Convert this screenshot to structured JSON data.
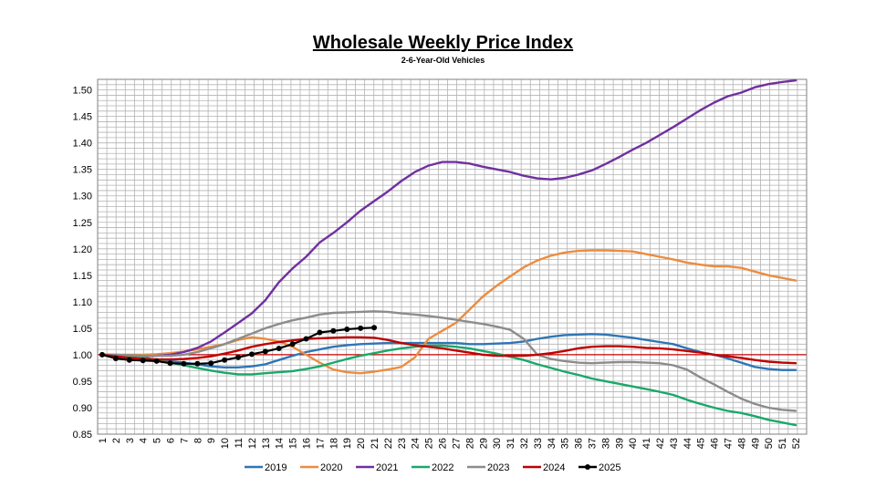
{
  "chart_data": {
    "type": "line",
    "title": "Wholesale Weekly Price Index",
    "subtitle": "2-6-Year-Old Vehicles",
    "xlabel": "",
    "ylabel": "",
    "ylim": [
      0.85,
      1.52
    ],
    "xlim": [
      1,
      52
    ],
    "grid": true,
    "legend_position": "bottom",
    "reference_line": {
      "y": 1.0,
      "color": "#c00000"
    },
    "x_ticks": [
      1,
      2,
      3,
      4,
      5,
      6,
      7,
      8,
      9,
      10,
      11,
      12,
      13,
      14,
      15,
      16,
      17,
      18,
      19,
      20,
      21,
      22,
      23,
      24,
      25,
      26,
      27,
      28,
      29,
      30,
      31,
      32,
      33,
      34,
      35,
      36,
      37,
      38,
      39,
      40,
      41,
      42,
      43,
      44,
      45,
      46,
      47,
      48,
      49,
      50,
      51,
      52
    ],
    "y_ticks": [
      "0.85",
      "0.90",
      "0.95",
      "1.00",
      "1.05",
      "1.10",
      "1.15",
      "1.20",
      "1.25",
      "1.30",
      "1.35",
      "1.40",
      "1.45",
      "1.50"
    ],
    "series": [
      {
        "name": "2019",
        "color": "#2f75b5",
        "marker": false,
        "x": [
          1,
          2,
          3,
          4,
          5,
          6,
          7,
          8,
          9,
          10,
          11,
          12,
          13,
          14,
          15,
          16,
          17,
          18,
          19,
          20,
          21,
          22,
          23,
          24,
          25,
          26,
          27,
          28,
          29,
          30,
          31,
          32,
          33,
          34,
          35,
          36,
          37,
          38,
          39,
          40,
          41,
          42,
          43,
          44,
          45,
          46,
          47,
          48,
          49,
          50,
          51,
          52
        ],
        "values": [
          1.0,
          0.998,
          0.995,
          0.993,
          0.99,
          0.988,
          0.985,
          0.982,
          0.978,
          0.976,
          0.976,
          0.978,
          0.982,
          0.99,
          0.998,
          1.005,
          1.01,
          1.015,
          1.018,
          1.02,
          1.021,
          1.022,
          1.022,
          1.022,
          1.022,
          1.022,
          1.022,
          1.02,
          1.02,
          1.021,
          1.022,
          1.025,
          1.03,
          1.034,
          1.037,
          1.038,
          1.039,
          1.038,
          1.035,
          1.032,
          1.028,
          1.024,
          1.02,
          1.012,
          1.005,
          1.0,
          0.993,
          0.985,
          0.977,
          0.973,
          0.971,
          0.971
        ]
      },
      {
        "name": "2020",
        "color": "#ed8c3e",
        "marker": false,
        "x": [
          1,
          2,
          3,
          4,
          5,
          6,
          7,
          8,
          9,
          10,
          11,
          12,
          13,
          14,
          15,
          16,
          17,
          18,
          19,
          20,
          21,
          22,
          23,
          24,
          25,
          26,
          27,
          28,
          29,
          30,
          31,
          32,
          33,
          34,
          35,
          36,
          37,
          38,
          39,
          40,
          41,
          42,
          43,
          44,
          45,
          46,
          47,
          48,
          49,
          50,
          51,
          52
        ],
        "values": [
          1.0,
          1.0,
          1.0,
          1.0,
          1.001,
          1.003,
          1.006,
          1.01,
          1.015,
          1.02,
          1.028,
          1.033,
          1.03,
          1.025,
          1.015,
          1.0,
          0.985,
          0.972,
          0.967,
          0.965,
          0.968,
          0.972,
          0.977,
          0.995,
          1.03,
          1.045,
          1.06,
          1.085,
          1.11,
          1.13,
          1.148,
          1.165,
          1.178,
          1.187,
          1.193,
          1.196,
          1.197,
          1.197,
          1.196,
          1.195,
          1.19,
          1.185,
          1.18,
          1.174,
          1.17,
          1.167,
          1.167,
          1.164,
          1.157,
          1.15,
          1.145,
          1.14
        ]
      },
      {
        "name": "2021",
        "color": "#7030a0",
        "marker": false,
        "x": [
          1,
          2,
          3,
          4,
          5,
          6,
          7,
          8,
          9,
          10,
          11,
          12,
          13,
          14,
          15,
          16,
          17,
          18,
          19,
          20,
          21,
          22,
          23,
          24,
          25,
          26,
          27,
          28,
          29,
          30,
          31,
          32,
          33,
          34,
          35,
          36,
          37,
          38,
          39,
          40,
          41,
          42,
          43,
          44,
          45,
          46,
          47,
          48,
          49,
          50,
          51,
          52
        ],
        "values": [
          1.0,
          0.998,
          0.997,
          0.997,
          0.998,
          1.0,
          1.005,
          1.013,
          1.025,
          1.042,
          1.06,
          1.078,
          1.103,
          1.137,
          1.163,
          1.185,
          1.212,
          1.23,
          1.25,
          1.272,
          1.29,
          1.308,
          1.328,
          1.345,
          1.357,
          1.364,
          1.364,
          1.361,
          1.355,
          1.35,
          1.345,
          1.338,
          1.333,
          1.331,
          1.334,
          1.34,
          1.348,
          1.36,
          1.373,
          1.387,
          1.4,
          1.415,
          1.43,
          1.446,
          1.462,
          1.476,
          1.488,
          1.495,
          1.505,
          1.511,
          1.515,
          1.518
        ]
      },
      {
        "name": "2022",
        "color": "#1aa86a",
        "marker": false,
        "x": [
          1,
          2,
          3,
          4,
          5,
          6,
          7,
          8,
          9,
          10,
          11,
          12,
          13,
          14,
          15,
          16,
          17,
          18,
          19,
          20,
          21,
          22,
          23,
          24,
          25,
          26,
          27,
          28,
          29,
          30,
          31,
          32,
          33,
          34,
          35,
          36,
          37,
          38,
          39,
          40,
          41,
          42,
          43,
          44,
          45,
          46,
          47,
          48,
          49,
          50,
          51,
          52
        ],
        "values": [
          1.0,
          1.0,
          0.998,
          0.995,
          0.99,
          0.985,
          0.98,
          0.975,
          0.97,
          0.966,
          0.963,
          0.963,
          0.965,
          0.967,
          0.969,
          0.973,
          0.978,
          0.985,
          0.992,
          0.998,
          1.003,
          1.008,
          1.012,
          1.015,
          1.017,
          1.017,
          1.015,
          1.012,
          1.007,
          1.002,
          0.996,
          0.99,
          0.982,
          0.975,
          0.968,
          0.962,
          0.955,
          0.95,
          0.945,
          0.94,
          0.935,
          0.93,
          0.924,
          0.915,
          0.907,
          0.9,
          0.894,
          0.89,
          0.884,
          0.877,
          0.872,
          0.867
        ]
      },
      {
        "name": "2023",
        "color": "#8c8c8c",
        "marker": false,
        "x": [
          1,
          2,
          3,
          4,
          5,
          6,
          7,
          8,
          9,
          10,
          11,
          12,
          13,
          14,
          15,
          16,
          17,
          18,
          19,
          20,
          21,
          22,
          23,
          24,
          25,
          26,
          27,
          28,
          29,
          30,
          31,
          32,
          33,
          34,
          35,
          36,
          37,
          38,
          39,
          40,
          41,
          42,
          43,
          44,
          45,
          46,
          47,
          48,
          49,
          50,
          51,
          52
        ],
        "values": [
          1.0,
          1.0,
          0.999,
          0.998,
          0.998,
          0.998,
          1.0,
          1.005,
          1.012,
          1.02,
          1.03,
          1.04,
          1.05,
          1.058,
          1.065,
          1.07,
          1.076,
          1.079,
          1.08,
          1.081,
          1.082,
          1.081,
          1.078,
          1.076,
          1.073,
          1.07,
          1.066,
          1.062,
          1.058,
          1.053,
          1.047,
          1.03,
          1.0,
          0.992,
          0.988,
          0.985,
          0.984,
          0.985,
          0.986,
          0.986,
          0.985,
          0.984,
          0.98,
          0.972,
          0.957,
          0.944,
          0.93,
          0.917,
          0.907,
          0.9,
          0.896,
          0.894
        ]
      },
      {
        "name": "2024",
        "color": "#c00000",
        "marker": false,
        "x": [
          1,
          2,
          3,
          4,
          5,
          6,
          7,
          8,
          9,
          10,
          11,
          12,
          13,
          14,
          15,
          16,
          17,
          18,
          19,
          20,
          21,
          22,
          23,
          24,
          25,
          26,
          27,
          28,
          29,
          30,
          31,
          32,
          33,
          34,
          35,
          36,
          37,
          38,
          39,
          40,
          41,
          42,
          43,
          44,
          45,
          46,
          47,
          48,
          49,
          50,
          51,
          52
        ],
        "values": [
          1.0,
          0.997,
          0.994,
          0.992,
          0.991,
          0.991,
          0.992,
          0.994,
          0.997,
          1.002,
          1.008,
          1.015,
          1.02,
          1.024,
          1.027,
          1.03,
          1.031,
          1.032,
          1.033,
          1.033,
          1.032,
          1.028,
          1.022,
          1.018,
          1.015,
          1.012,
          1.008,
          1.004,
          1.0,
          0.998,
          0.998,
          0.998,
          1.0,
          1.003,
          1.007,
          1.012,
          1.015,
          1.016,
          1.016,
          1.015,
          1.013,
          1.012,
          1.01,
          1.007,
          1.004,
          1.0,
          0.997,
          0.994,
          0.99,
          0.987,
          0.985,
          0.984
        ]
      },
      {
        "name": "2025",
        "color": "#000000",
        "marker": true,
        "x": [
          1,
          2,
          3,
          4,
          5,
          6,
          7,
          8,
          9,
          10,
          11,
          12,
          13,
          14,
          15,
          16,
          17,
          18,
          19,
          20,
          21
        ],
        "values": [
          1.0,
          0.993,
          0.99,
          0.989,
          0.988,
          0.984,
          0.983,
          0.983,
          0.984,
          0.99,
          0.995,
          1.001,
          1.006,
          1.012,
          1.02,
          1.03,
          1.042,
          1.045,
          1.048,
          1.05,
          1.051
        ]
      }
    ]
  }
}
